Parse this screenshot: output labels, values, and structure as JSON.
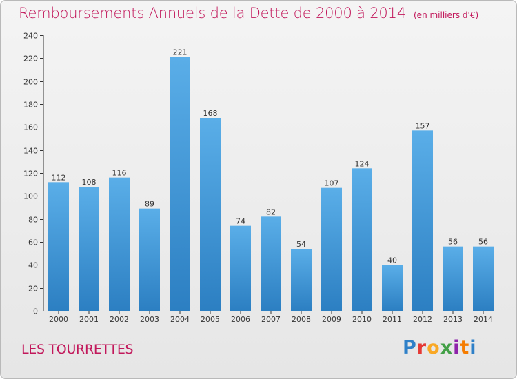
{
  "header": {
    "title": "Remboursements Annuels de la Dette de 2000 à 2014",
    "unit": "(en milliers d'€)"
  },
  "footer": {
    "commune": "LES TOURRETTES",
    "logo_text": "Proxiti"
  },
  "colors": {
    "title": "#c2185b",
    "bar_top": "#5aaee8",
    "bar_bottom": "#2c7fc2",
    "axis": "#333333"
  },
  "chart_data": {
    "type": "bar",
    "title": "Remboursements Annuels de la Dette de 2000 à 2014",
    "subtitle": "(en milliers d'€)",
    "xlabel": "",
    "ylabel": "",
    "categories": [
      "2000",
      "2001",
      "2002",
      "2003",
      "2004",
      "2005",
      "2006",
      "2007",
      "2008",
      "2009",
      "2010",
      "2011",
      "2012",
      "2013",
      "2014"
    ],
    "values": [
      112,
      108,
      116,
      89,
      221,
      168,
      74,
      82,
      54,
      107,
      124,
      40,
      157,
      56,
      56
    ],
    "ylim": [
      0,
      240
    ],
    "yticks": [
      0,
      20,
      40,
      60,
      80,
      100,
      120,
      140,
      160,
      180,
      200,
      220,
      240
    ],
    "grid": false,
    "data_labels": true
  }
}
